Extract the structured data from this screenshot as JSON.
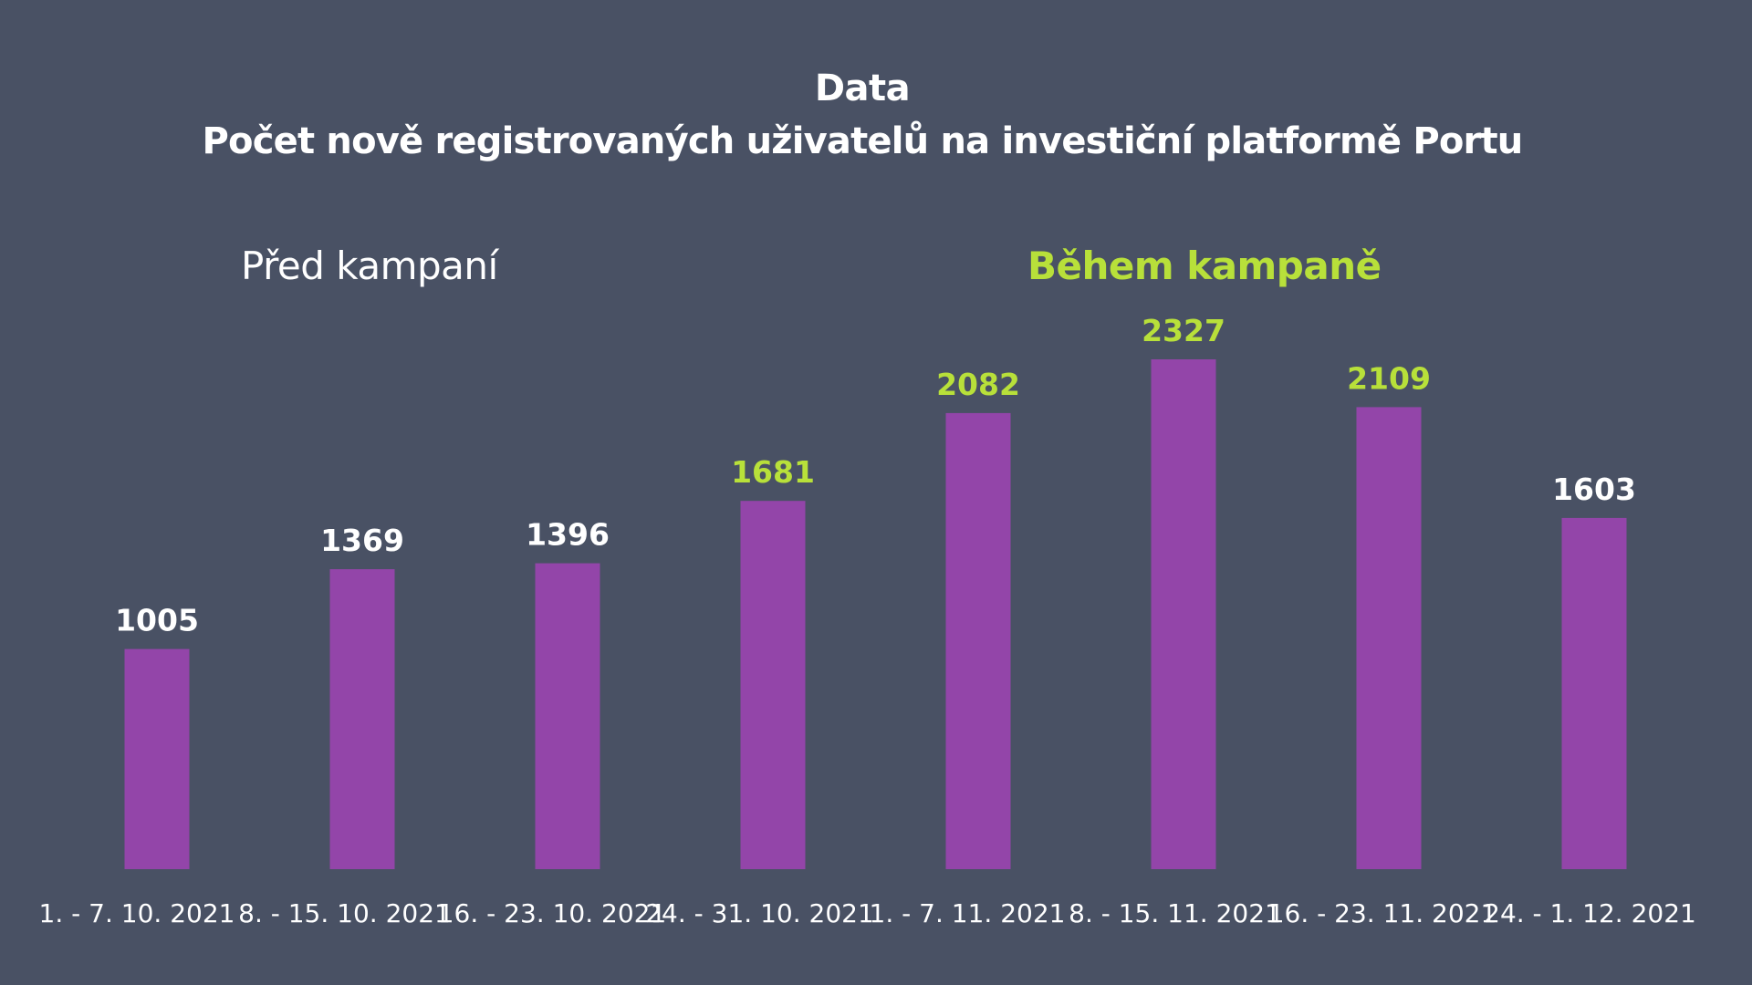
{
  "title": "Data",
  "subtitle": "Počet nově registrovaných uživatelů na investiční platformě Portu",
  "groups": {
    "before": "Před kampaní",
    "during": "Během kampaně"
  },
  "colors": {
    "background": "#495164",
    "bar": "#9345a9",
    "highlight": "#b8e03a",
    "text": "#ffffff"
  },
  "chart_data": {
    "type": "bar",
    "title": "Data",
    "subtitle": "Počet nově registrovaných uživatelů na investiční platformě Portu",
    "categories": [
      "1. - 7. 10. 2021",
      "8. - 15. 10. 2021",
      "16. - 23. 10. 2021",
      "24. - 31. 10. 2021",
      "1. - 7. 11. 2021",
      "8. - 15. 11. 2021",
      "16. - 23. 11. 2021",
      "24. - 1. 12. 2021"
    ],
    "values": [
      1005,
      1369,
      1396,
      1681,
      2082,
      2327,
      2109,
      1603
    ],
    "value_labels": [
      "1005",
      "1369",
      "1396",
      "1681",
      "2082",
      "2327",
      "2109",
      "1603"
    ],
    "highlighted_labels": [
      false,
      false,
      false,
      true,
      true,
      true,
      true,
      false
    ],
    "ylim": [
      0,
      2327
    ],
    "grid": false,
    "xlabel": "",
    "ylabel": ""
  }
}
